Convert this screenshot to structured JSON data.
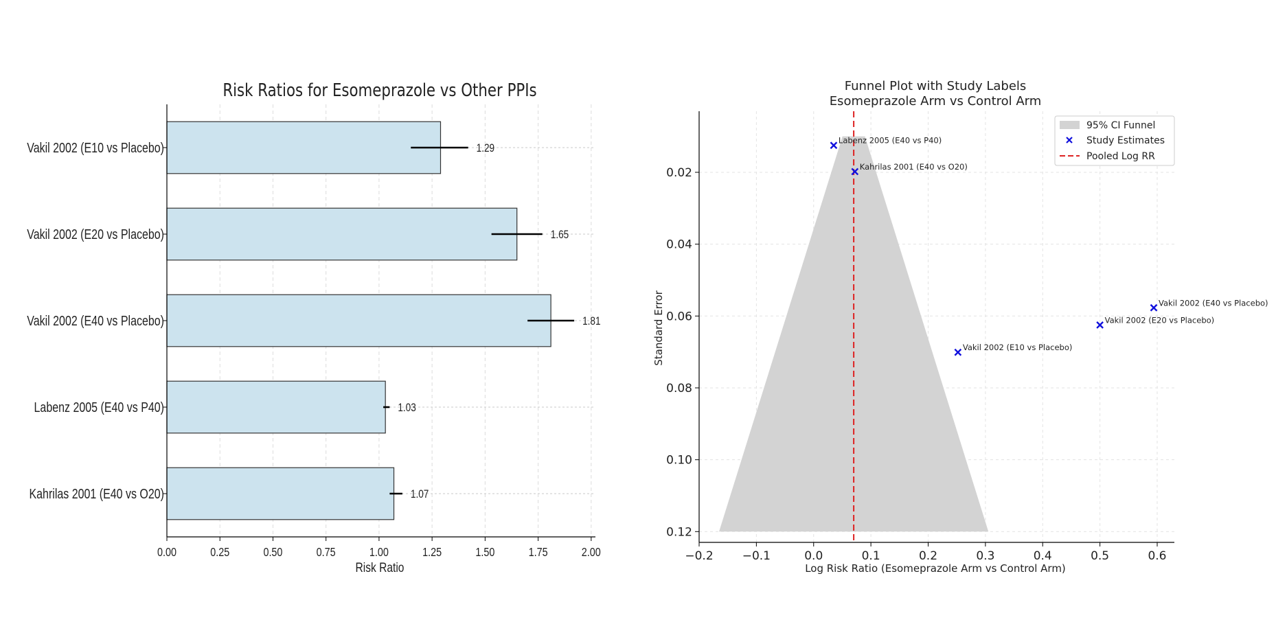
{
  "chart_data": [
    {
      "type": "bar",
      "orientation": "horizontal",
      "title": "Risk Ratios for Esomeprazole vs Other PPIs",
      "xlabel": "Risk Ratio",
      "ylabel": "",
      "xlim": [
        0.0,
        2.02
      ],
      "xticks": [
        "0.00",
        "0.25",
        "0.50",
        "0.75",
        "1.00",
        "1.25",
        "1.50",
        "1.75",
        "2.00"
      ],
      "grid": true,
      "bar_color": "#cce3ee",
      "bars": [
        {
          "label": "Vakil 2002 (E10 vs Placebo)",
          "value": 1.29,
          "value_label": "1.29",
          "ci_low": 1.15,
          "ci_high": 1.42
        },
        {
          "label": "Vakil 2002 (E20 vs Placebo)",
          "value": 1.65,
          "value_label": "1.65",
          "ci_low": 1.53,
          "ci_high": 1.77
        },
        {
          "label": "Vakil 2002 (E40 vs Placebo)",
          "value": 1.81,
          "value_label": "1.81",
          "ci_low": 1.7,
          "ci_high": 1.92
        },
        {
          "label": "Labenz 2005 (E40 vs P40)",
          "value": 1.03,
          "value_label": "1.03",
          "ci_low": 1.02,
          "ci_high": 1.05
        },
        {
          "label": "Kahrilas 2001 (E40 vs O20)",
          "value": 1.07,
          "value_label": "1.07",
          "ci_low": 1.05,
          "ci_high": 1.11
        }
      ]
    },
    {
      "type": "scatter",
      "title": "Funnel Plot with Study Labels\nEsomeprazole Arm vs Control Arm",
      "xlabel": "Log Risk Ratio (Esomeprazole Arm vs Control Arm)",
      "ylabel": "Standard Error",
      "xlim": [
        -0.2,
        0.63
      ],
      "ylim": [
        0.123,
        0.003
      ],
      "y_inverted": true,
      "xticks": [
        "−0.2",
        "−0.1",
        "0.0",
        "0.1",
        "0.2",
        "0.3",
        "0.4",
        "0.5",
        "0.6"
      ],
      "xtick_values": [
        -0.2,
        -0.1,
        0.0,
        0.1,
        0.2,
        0.3,
        0.4,
        0.5,
        0.6
      ],
      "yticks": [
        "0.02",
        "0.04",
        "0.06",
        "0.08",
        "0.10",
        "0.12"
      ],
      "ytick_values": [
        0.02,
        0.04,
        0.06,
        0.08,
        0.1,
        0.12
      ],
      "grid": true,
      "legend_position": "top-right",
      "legend": [
        "95% CI Funnel",
        "Study Estimates",
        "Pooled Log RR"
      ],
      "marker_color": "#1010dd",
      "pooled_color": "#dd2222",
      "funnel_color": "#d3d3d3",
      "pooled_log_rr": 0.07,
      "funnel": {
        "se_min": 0.01,
        "se_max": 0.12,
        "multiplier": 1.96
      },
      "points": [
        {
          "label": "Labenz 2005 (E40 vs P40)",
          "x": 0.035,
          "y": 0.0125
        },
        {
          "label": "Kahrilas 2001 (E40 vs O20)",
          "x": 0.072,
          "y": 0.0198
        },
        {
          "label": "Vakil 2002 (E40 vs Placebo)",
          "x": 0.594,
          "y": 0.0577
        },
        {
          "label": "Vakil 2002 (E20 vs Placebo)",
          "x": 0.5,
          "y": 0.0625
        },
        {
          "label": "Vakil 2002 (E10 vs Placebo)",
          "x": 0.252,
          "y": 0.0701
        }
      ]
    }
  ]
}
